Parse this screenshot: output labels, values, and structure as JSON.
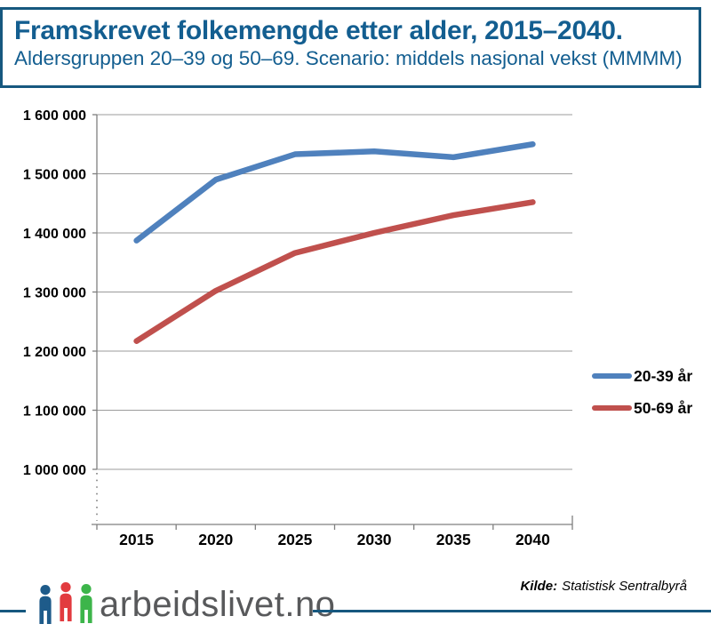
{
  "header": {
    "title": "Framskrevet folkemengde etter alder, 2015–2040.",
    "subtitle": "Aldersgruppen 20–39 og 50–69. Scenario: middels nasjonal vekst (MMMM)"
  },
  "chart_data": {
    "type": "line",
    "title": "Framskrevet folkemengde etter alder, 2015–2040",
    "categories": [
      "2015",
      "2020",
      "2025",
      "2030",
      "2035",
      "2040"
    ],
    "series": [
      {
        "name": "20-39 år",
        "color": "#4F81BD",
        "values": [
          1387000,
          1490000,
          1533000,
          1538000,
          1528000,
          1550000
        ]
      },
      {
        "name": "50-69 år",
        "color": "#C0504D",
        "values": [
          1217000,
          1302000,
          1366000,
          1400000,
          1430000,
          1452000
        ]
      }
    ],
    "xlabel": "",
    "ylabel": "",
    "ylim": [
      1000000,
      1600000
    ],
    "ytick_step": 100000,
    "ytick_labels": [
      "1 000 000",
      "1 100 000",
      "1 200 000",
      "1 300 000",
      "1 400 000",
      "1 500 000",
      "1 600 000"
    ],
    "grid": true,
    "legend_position": "right",
    "y_axis_truncated_below": 1000000
  },
  "footer": {
    "logo_text": "arbeidslivet.no",
    "logo_colors": [
      "#1E5B8A",
      "#E23B3F",
      "#3CB54A"
    ],
    "source_label": "Kilde:",
    "source_text": "Statistisk Sentralbyrå"
  },
  "colors": {
    "accent_blue": "#16587F",
    "title_blue": "#135E90",
    "grid_gray": "#9B9B9B",
    "axis_gray": "#7F7F7F",
    "tick_text": "#000000",
    "logo_text_gray": "#58595B",
    "series_blue": "#4F81BD",
    "series_red": "#C0504D"
  }
}
